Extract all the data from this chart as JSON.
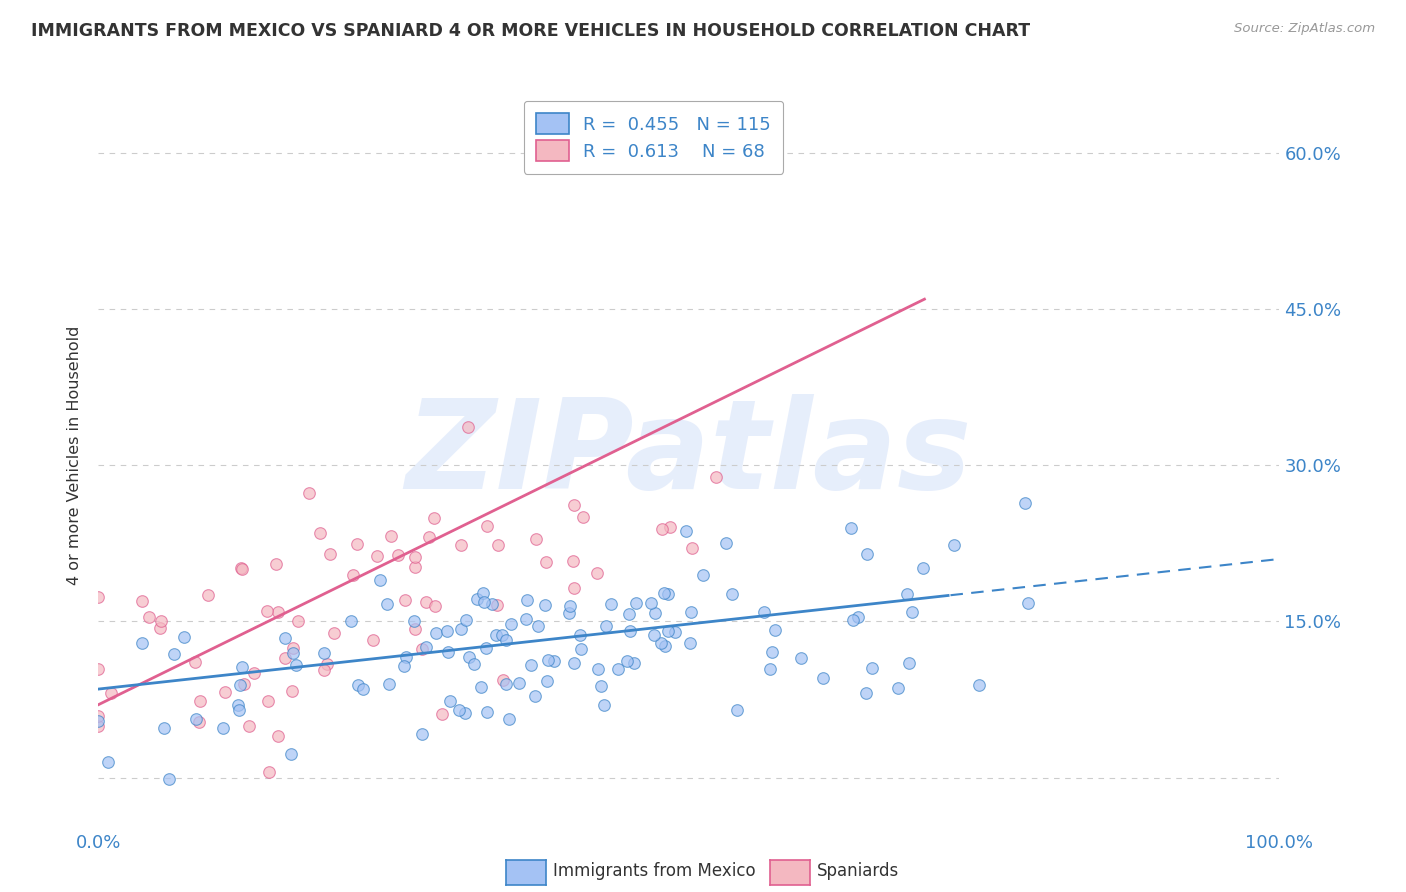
{
  "title": "IMMIGRANTS FROM MEXICO VS SPANIARD 4 OR MORE VEHICLES IN HOUSEHOLD CORRELATION CHART",
  "source": "Source: ZipAtlas.com",
  "ylabel": "4 or more Vehicles in Household",
  "ytick_values": [
    0,
    15,
    30,
    45,
    60
  ],
  "xlim": [
    0,
    100
  ],
  "ylim": [
    -5,
    67
  ],
  "R_mexico": 0.455,
  "N_mexico": 115,
  "R_spain": 0.613,
  "N_spain": 68,
  "color_mexico": "#a4c2f4",
  "color_spain": "#f4b8c1",
  "color_mexico_line": "#3d85c8",
  "color_spain_line": "#e06090",
  "color_blue": "#3d85c8",
  "color_title": "#333333",
  "color_source": "#999999",
  "watermark_color": "#c9daf8",
  "watermark_text": "ZIPatlas",
  "background_color": "#ffffff",
  "grid_color": "#cccccc",
  "legend_box_color": "#eeeeee",
  "legend_border_color": "#aaaaaa",
  "seed_mexico": 7,
  "seed_spain": 13,
  "mean_x_mexico": 38,
  "std_x_mexico": 18,
  "mean_y_mexico": 13,
  "std_y_mexico": 5,
  "mean_x_spain": 20,
  "std_x_spain": 15,
  "mean_y_spain": 17,
  "std_y_spain": 8,
  "line_mex_x0": 0,
  "line_mex_y0": 8.5,
  "line_mex_x1": 100,
  "line_mex_y1": 21,
  "line_spa_x0": 0,
  "line_spa_y0": 7,
  "line_spa_x1": 70,
  "line_spa_y1": 46,
  "dash_start_x": 72,
  "dash_end_x": 100,
  "dot_alpha": 0.7,
  "dot_size": 70,
  "marker_size": 8
}
